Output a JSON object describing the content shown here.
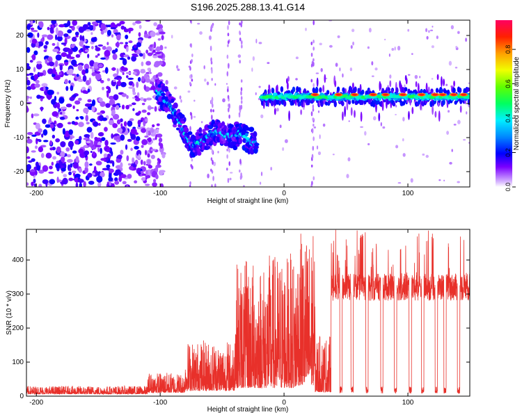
{
  "title": "S196.2025.288.13.41.G14",
  "chart_data": [
    {
      "type": "heatmap",
      "xlabel": "Height of straight line (km)",
      "ylabel": "Frequency (Hz)",
      "xlim": [
        -208,
        150
      ],
      "ylim": [
        -24.5,
        24.5
      ],
      "xticks": [
        -200,
        -100,
        0,
        100
      ],
      "yticks": [
        -20,
        -10,
        0,
        10,
        20
      ],
      "colorbar": {
        "label": "Normalized spectral amplitude",
        "range": [
          0,
          0.97
        ],
        "ticks": [
          0.0,
          0.2,
          0.4,
          0.6,
          0.8
        ],
        "tick_labels": [
          "0.0",
          "0.2",
          "0.4",
          "0.6",
          "0.8"
        ],
        "colormap": "rainbow (magenta-blue-cyan-green-yellow-orange-red)"
      },
      "features": {
        "noise_region_x": [
          -208,
          -97
        ],
        "descending_track": [
          {
            "x": -103,
            "y": 4
          },
          {
            "x": -95,
            "y": 1
          },
          {
            "x": -85,
            "y": -5
          },
          {
            "x": -75,
            "y": -12
          },
          {
            "x": -65,
            "y": -11
          },
          {
            "x": -55,
            "y": -8
          },
          {
            "x": -45,
            "y": -10
          },
          {
            "x": -35,
            "y": -9
          },
          {
            "x": -22,
            "y": -12
          }
        ],
        "flat_track": {
          "x_range": [
            -18,
            150
          ],
          "y": 2
        }
      }
    },
    {
      "type": "line",
      "xlabel": "Height of straight line (km)",
      "ylabel": "SNR (10 * v/v)",
      "xlim": [
        -208,
        150
      ],
      "ylim": [
        0,
        490
      ],
      "xticks": [
        -200,
        -100,
        0,
        100
      ],
      "yticks": [
        0,
        100,
        200,
        300,
        400
      ],
      "series": [
        {
          "color": "#e8302a",
          "segments": [
            {
              "x_range": [
                -208,
                -110
              ],
              "baseline": 15,
              "noise_max": 30
            },
            {
              "x_range": [
                -110,
                -80
              ],
              "baseline": 25,
              "noise_max": 70
            },
            {
              "x_range": [
                -80,
                -40
              ],
              "baseline": 40,
              "noise_max": 165
            },
            {
              "x_range": [
                -40,
                -15
              ],
              "baseline": 60,
              "noise_max": 400
            },
            {
              "x_range": [
                -15,
                10
              ],
              "baseline": 60,
              "noise_max": 420
            },
            {
              "x_range": [
                10,
                25
              ],
              "baseline": 80,
              "noise_max": 480
            },
            {
              "x_range": [
                25,
                38
              ],
              "baseline": 30,
              "noise_max": 180
            },
            {
              "x_range": [
                38,
                150
              ],
              "baseline": 320,
              "noise_max": 490
            }
          ],
          "dropouts_x": [
            46,
            55,
            67,
            79,
            90,
            102,
            112,
            123,
            130,
            141
          ]
        }
      ]
    }
  ]
}
